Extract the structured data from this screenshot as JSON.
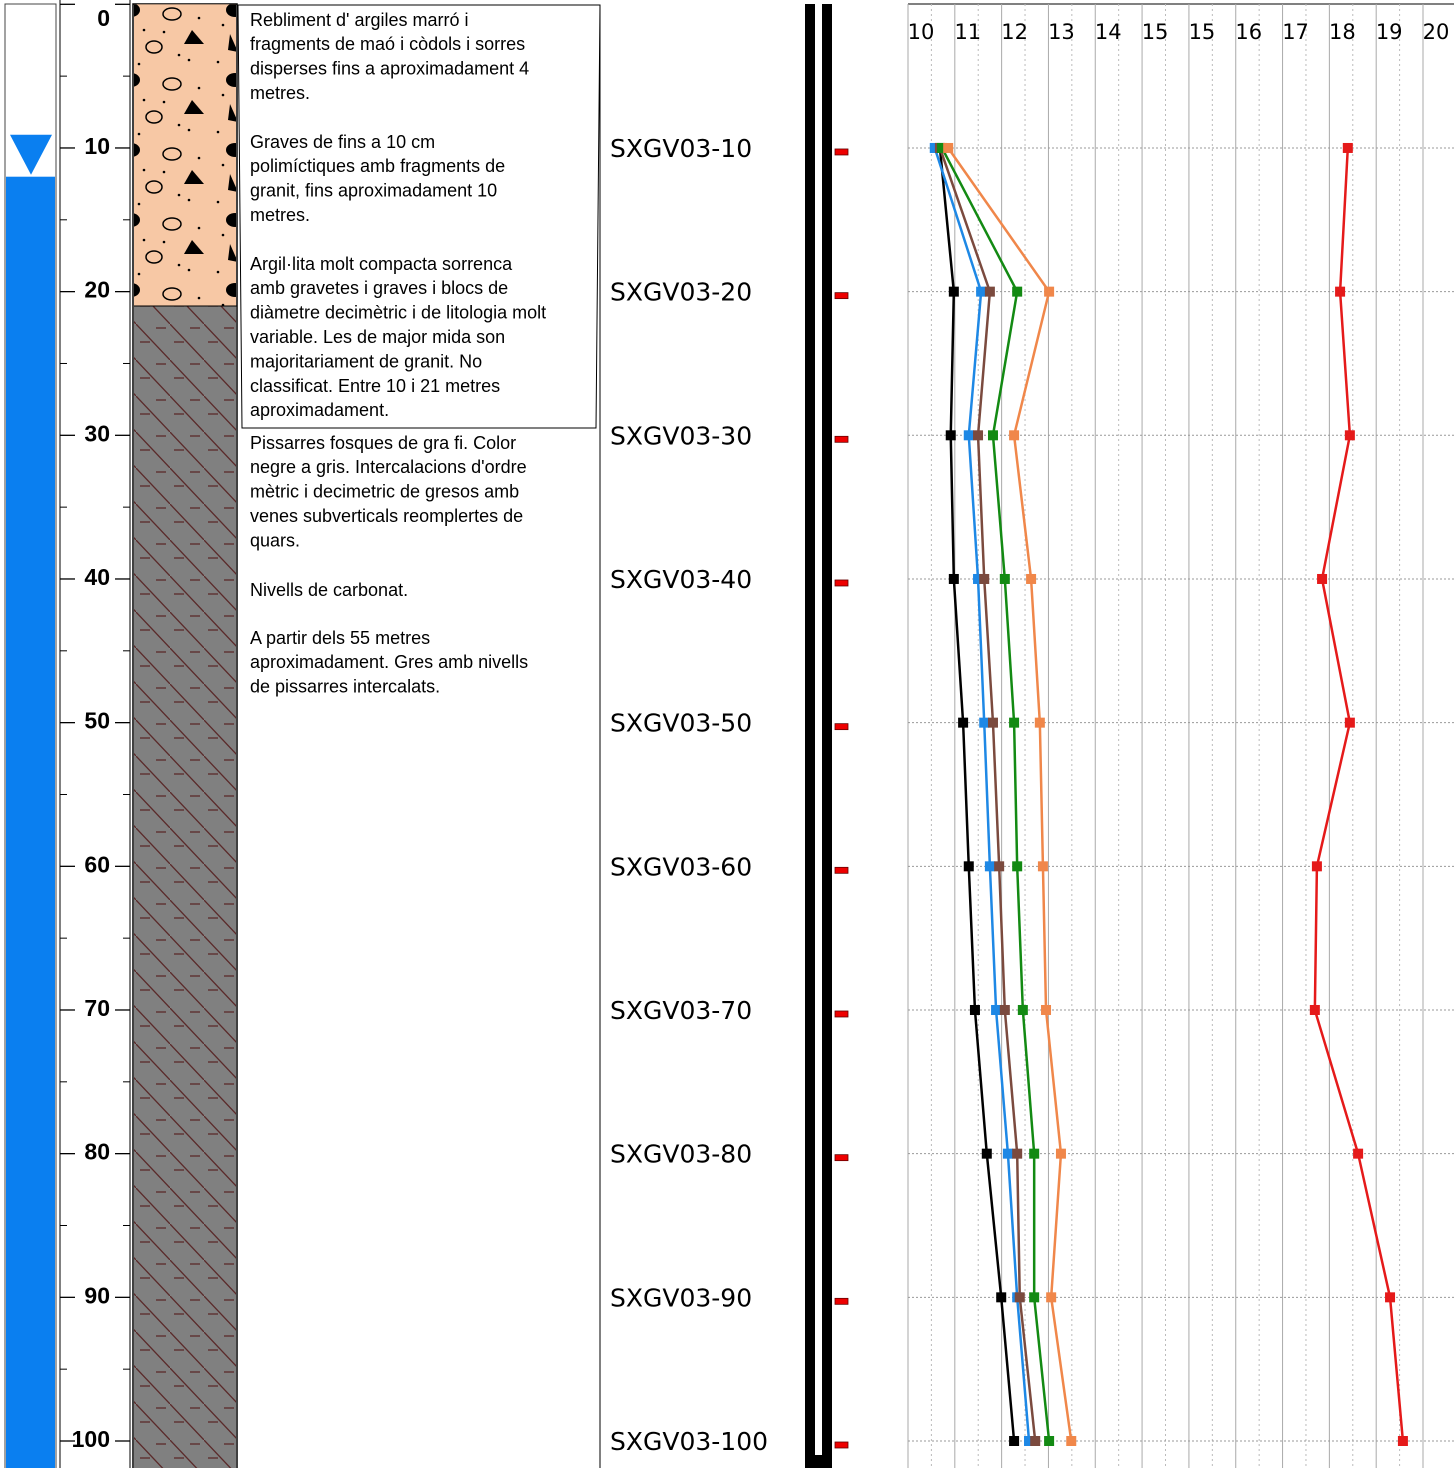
{
  "lithology": [
    {
      "top": 0,
      "bottom": 21,
      "pattern": "gravel",
      "color": "#f7c8a5"
    },
    {
      "top": 21,
      "bottom": 102,
      "pattern": "shale",
      "color": "#808080"
    }
  ],
  "water_level": 12,
  "descriptions": [
    [
      "Rebliment d' argiles marró i",
      "fragments de maó i còdols i sorres",
      "disperses fins a aproximadament 4",
      "metres."
    ],
    [
      "Graves de fins a 10 cm",
      "polimíctiques amb fragments de",
      "granit, fins aproximadament 10",
      "metres."
    ],
    [
      "Argil·lita molt compacta sorrenca",
      "amb gravetes i graves i blocs de",
      "diàmetre decimètric i de litologia molt",
      "variable. Les de major mida son",
      "majoritariament de granit. No",
      "classificat. Entre 10 i 21 metres",
      "aproximadament."
    ],
    [
      "Pissarres fosques de gra fi. Color",
      "negre a gris. Intercalacions d'ordre",
      "mètric i decimetric de gresos amb",
      "venes subverticals reomplertes de",
      "quars."
    ],
    [
      "Nivells de carbonat."
    ],
    [
      "A partir dels 55 metres",
      "aproximadament. Gres amb nivells",
      "de pissarres intercalats."
    ]
  ],
  "samples": {
    "depths": [
      10,
      20,
      30,
      40,
      50,
      60,
      70,
      80,
      90,
      100
    ],
    "labels": [
      "SXGV03-10",
      "SXGV03-20",
      "SXGV03-30",
      "SXGV03-40",
      "SXGV03-50",
      "SXGV03-60",
      "SXGV03-70",
      "SXGV03-80",
      "SXGV03-90",
      "SXGV03-100"
    ]
  },
  "chart_data": {
    "type": "line",
    "y": [
      10,
      20,
      30,
      40,
      50,
      60,
      70,
      80,
      90,
      100
    ],
    "ylim": [
      0,
      102
    ],
    "yticks": [
      0,
      10,
      20,
      30,
      40,
      50,
      60,
      70,
      80,
      90,
      100
    ],
    "yticks_minor": [
      5,
      15,
      25,
      35,
      45,
      55,
      65,
      75,
      85,
      95
    ],
    "xlim": [
      10,
      20.8
    ],
    "xticks": [
      {
        "value": 10,
        "label": "10"
      },
      {
        "value": 10.909,
        "label": "11"
      },
      {
        "value": 11.818,
        "label": "12"
      },
      {
        "value": 12.727,
        "label": "13"
      },
      {
        "value": 13.636,
        "label": "14"
      },
      {
        "value": 14.545,
        "label": "15"
      },
      {
        "value": 15.455,
        "label": "15"
      },
      {
        "value": 16.364,
        "label": "16"
      },
      {
        "value": 17.273,
        "label": "17"
      },
      {
        "value": 18.182,
        "label": "18"
      },
      {
        "value": 19.091,
        "label": "19"
      },
      {
        "value": 20,
        "label": "20"
      }
    ],
    "grid": true,
    "series": [
      {
        "color": "#000000",
        "values": [
          10.62,
          10.89,
          10.83,
          10.89,
          11.07,
          11.18,
          11.3,
          11.53,
          11.81,
          12.06
        ]
      },
      {
        "color": "#1e88e5",
        "values": [
          10.52,
          11.42,
          11.18,
          11.36,
          11.48,
          11.59,
          11.71,
          11.94,
          12.12,
          12.35
        ]
      },
      {
        "color": "#7b4a3e",
        "values": [
          10.62,
          11.59,
          11.36,
          11.48,
          11.65,
          11.77,
          11.88,
          12.12,
          12.17,
          12.47
        ]
      },
      {
        "color": "#138a13",
        "values": [
          10.66,
          12.12,
          11.65,
          11.88,
          12.06,
          12.12,
          12.23,
          12.45,
          12.45,
          12.74
        ]
      },
      {
        "color": "#f0874a",
        "values": [
          10.78,
          12.74,
          12.06,
          12.39,
          12.56,
          12.62,
          12.68,
          12.97,
          12.78,
          13.17
        ]
      },
      {
        "color": "#e51a1a",
        "values": [
          18.54,
          18.39,
          18.58,
          18.04,
          18.58,
          17.94,
          17.9,
          18.74,
          19.36,
          19.61
        ]
      }
    ]
  }
}
